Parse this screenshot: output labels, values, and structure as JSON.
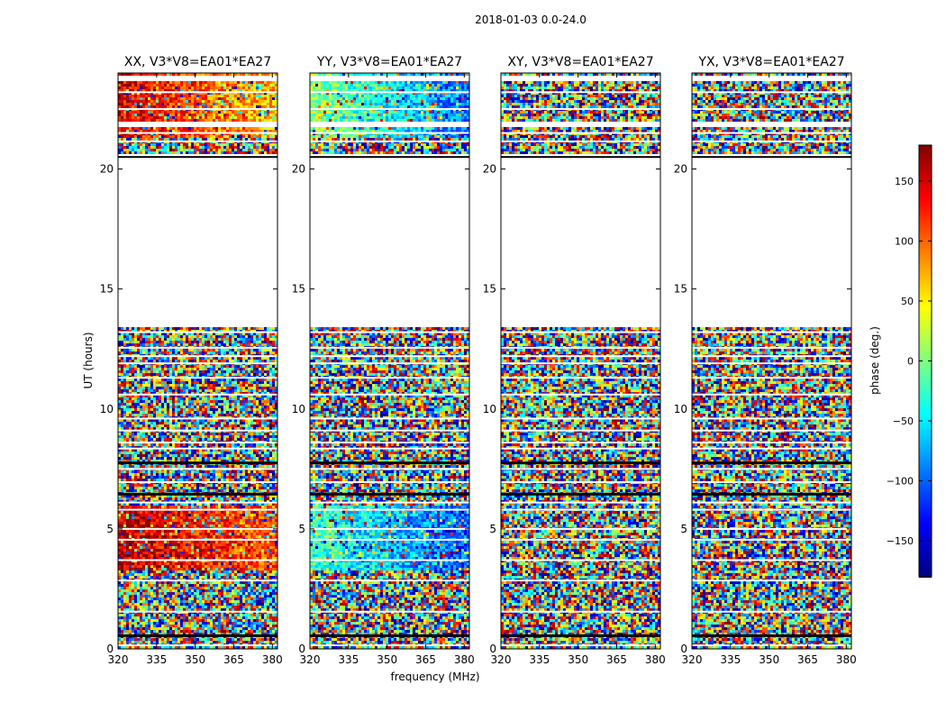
{
  "figure": {
    "suptitle": "2018-01-03 0.0-24.0",
    "xlabel": "frequency (MHz)",
    "ylabel": "UT (hours)"
  },
  "chart_data": {
    "type": "heatmap",
    "description_value": "phase (deg.)",
    "xlim": [
      320,
      382
    ],
    "ylim": [
      0,
      24
    ],
    "xticks": [
      320,
      335,
      350,
      365,
      380
    ],
    "yticks": [
      0,
      5,
      10,
      15,
      20
    ],
    "panels": [
      {
        "title": "XX, V3*V8=EA01*EA27",
        "mean_phase_bands": [
          {
            "ut": [
              21.3,
              24.0
            ],
            "phase_start": 150,
            "phase_end": 60
          },
          {
            "ut": [
              3.3,
              6.0
            ],
            "phase_start": 160,
            "phase_end": 100
          }
        ]
      },
      {
        "title": "YY, V3*V8=EA01*EA27",
        "mean_phase_bands": [
          {
            "ut": [
              21.3,
              24.0
            ],
            "phase_start": 10,
            "phase_end": -100
          },
          {
            "ut": [
              3.3,
              6.0
            ],
            "phase_start": -20,
            "phase_end": -110
          }
        ]
      },
      {
        "title": "XY, V3*V8=EA01*EA27",
        "mean_phase_bands": []
      },
      {
        "title": "YX, V3*V8=EA01*EA27",
        "mean_phase_bands": []
      }
    ],
    "data_gaps_ut": [
      [
        13.4,
        20.5
      ],
      [
        20.5,
        20.65
      ],
      [
        21.8,
        22.0
      ],
      [
        23.7,
        23.85
      ]
    ],
    "colorbar": {
      "label": "phase (deg.)",
      "min": -180,
      "max": 180,
      "ticks": [
        150,
        100,
        50,
        0,
        -50,
        -100,
        -150
      ],
      "tick_labels": [
        "150",
        "100",
        "50",
        "0",
        "−50",
        "−100",
        "−150"
      ],
      "colormap": "jet"
    }
  }
}
